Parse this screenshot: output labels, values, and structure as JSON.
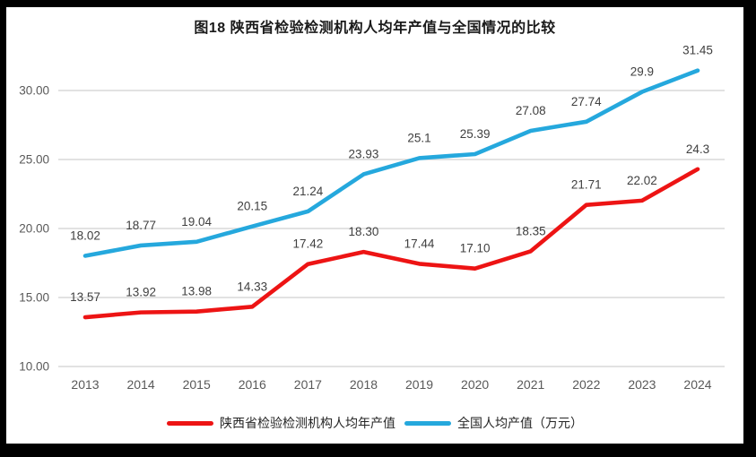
{
  "frame": {
    "background_color": "#000000",
    "panel_color": "#ffffff"
  },
  "colors": {
    "title": "#1a1a1a",
    "grid": "#d9d9d9",
    "tick": "#595959",
    "data_label": "#3f3f3f",
    "series_shaanxi": "#ed1414",
    "series_national": "#25a8dd"
  },
  "chart_data": {
    "type": "line",
    "title": "图18 陕西省检验检测机构人均年产值与全国情况的比较",
    "xlabel": "",
    "ylabel": "",
    "categories": [
      "2013",
      "2014",
      "2015",
      "2016",
      "2017",
      "2018",
      "2019",
      "2020",
      "2021",
      "2022",
      "2023",
      "2024"
    ],
    "series": [
      {
        "name": "陕西省检验检测机构人均年产值",
        "color": "#ed1414",
        "values": [
          13.57,
          13.92,
          13.98,
          14.33,
          17.42,
          18.3,
          17.44,
          17.1,
          18.35,
          21.71,
          22.02,
          24.3
        ],
        "labels": [
          "13.57",
          "13.92",
          "13.98",
          "14.33",
          "17.42",
          "18.30",
          "17.44",
          "17.10",
          "18.35",
          "21.71",
          "22.02",
          "24.3"
        ]
      },
      {
        "name": "全国人均产值（万元）",
        "color": "#25a8dd",
        "values": [
          18.02,
          18.77,
          19.04,
          20.15,
          21.24,
          23.93,
          25.1,
          25.39,
          27.08,
          27.74,
          29.9,
          31.45
        ],
        "labels": [
          "18.02",
          "18.77",
          "19.04",
          "20.15",
          "21.24",
          "23.93",
          "25.1",
          "25.39",
          "27.08",
          "27.74",
          "29.9",
          "31.45"
        ]
      }
    ],
    "ylim": [
      10,
      30
    ],
    "y_ticks": [
      "10.00",
      "15.00",
      "20.00",
      "25.00",
      "30.00"
    ],
    "grid": "horizontal-on",
    "legend_position": "bottom",
    "data_labels_shown": true
  }
}
